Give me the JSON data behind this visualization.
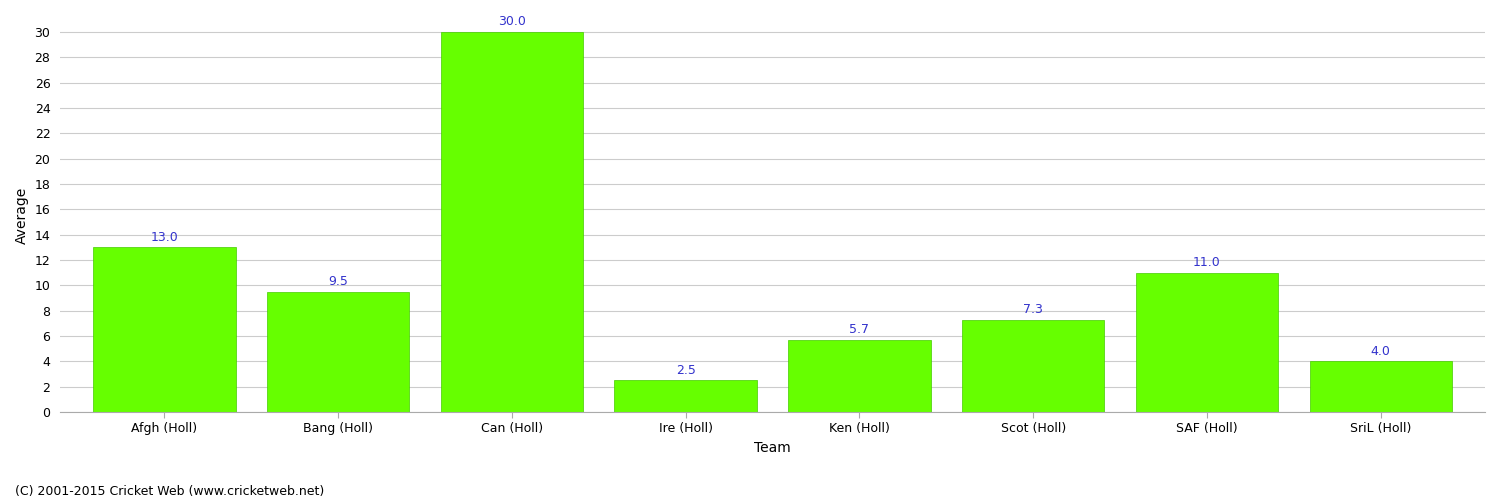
{
  "categories": [
    "Afgh (Holl)",
    "Bang (Holl)",
    "Can (Holl)",
    "Ire (Holl)",
    "Ken (Holl)",
    "Scot (Holl)",
    "SAF (Holl)",
    "SriL (Holl)"
  ],
  "values": [
    13.0,
    9.5,
    30.0,
    2.5,
    5.7,
    7.3,
    11.0,
    4.0
  ],
  "bar_color": "#66ff00",
  "bar_edge_color": "#44cc00",
  "value_color": "#3333cc",
  "ylabel": "Average",
  "xlabel": "Team",
  "ylim": [
    0,
    31
  ],
  "yticks": [
    0,
    2,
    4,
    6,
    8,
    10,
    12,
    14,
    16,
    18,
    20,
    22,
    24,
    26,
    28,
    30
  ],
  "grid_color": "#cccccc",
  "background_color": "#ffffff",
  "footer": "(C) 2001-2015 Cricket Web (www.cricketweb.net)",
  "value_fontsize": 9,
  "label_fontsize": 9,
  "ylabel_fontsize": 10,
  "xlabel_fontsize": 10,
  "footer_fontsize": 9,
  "bar_width": 0.82
}
